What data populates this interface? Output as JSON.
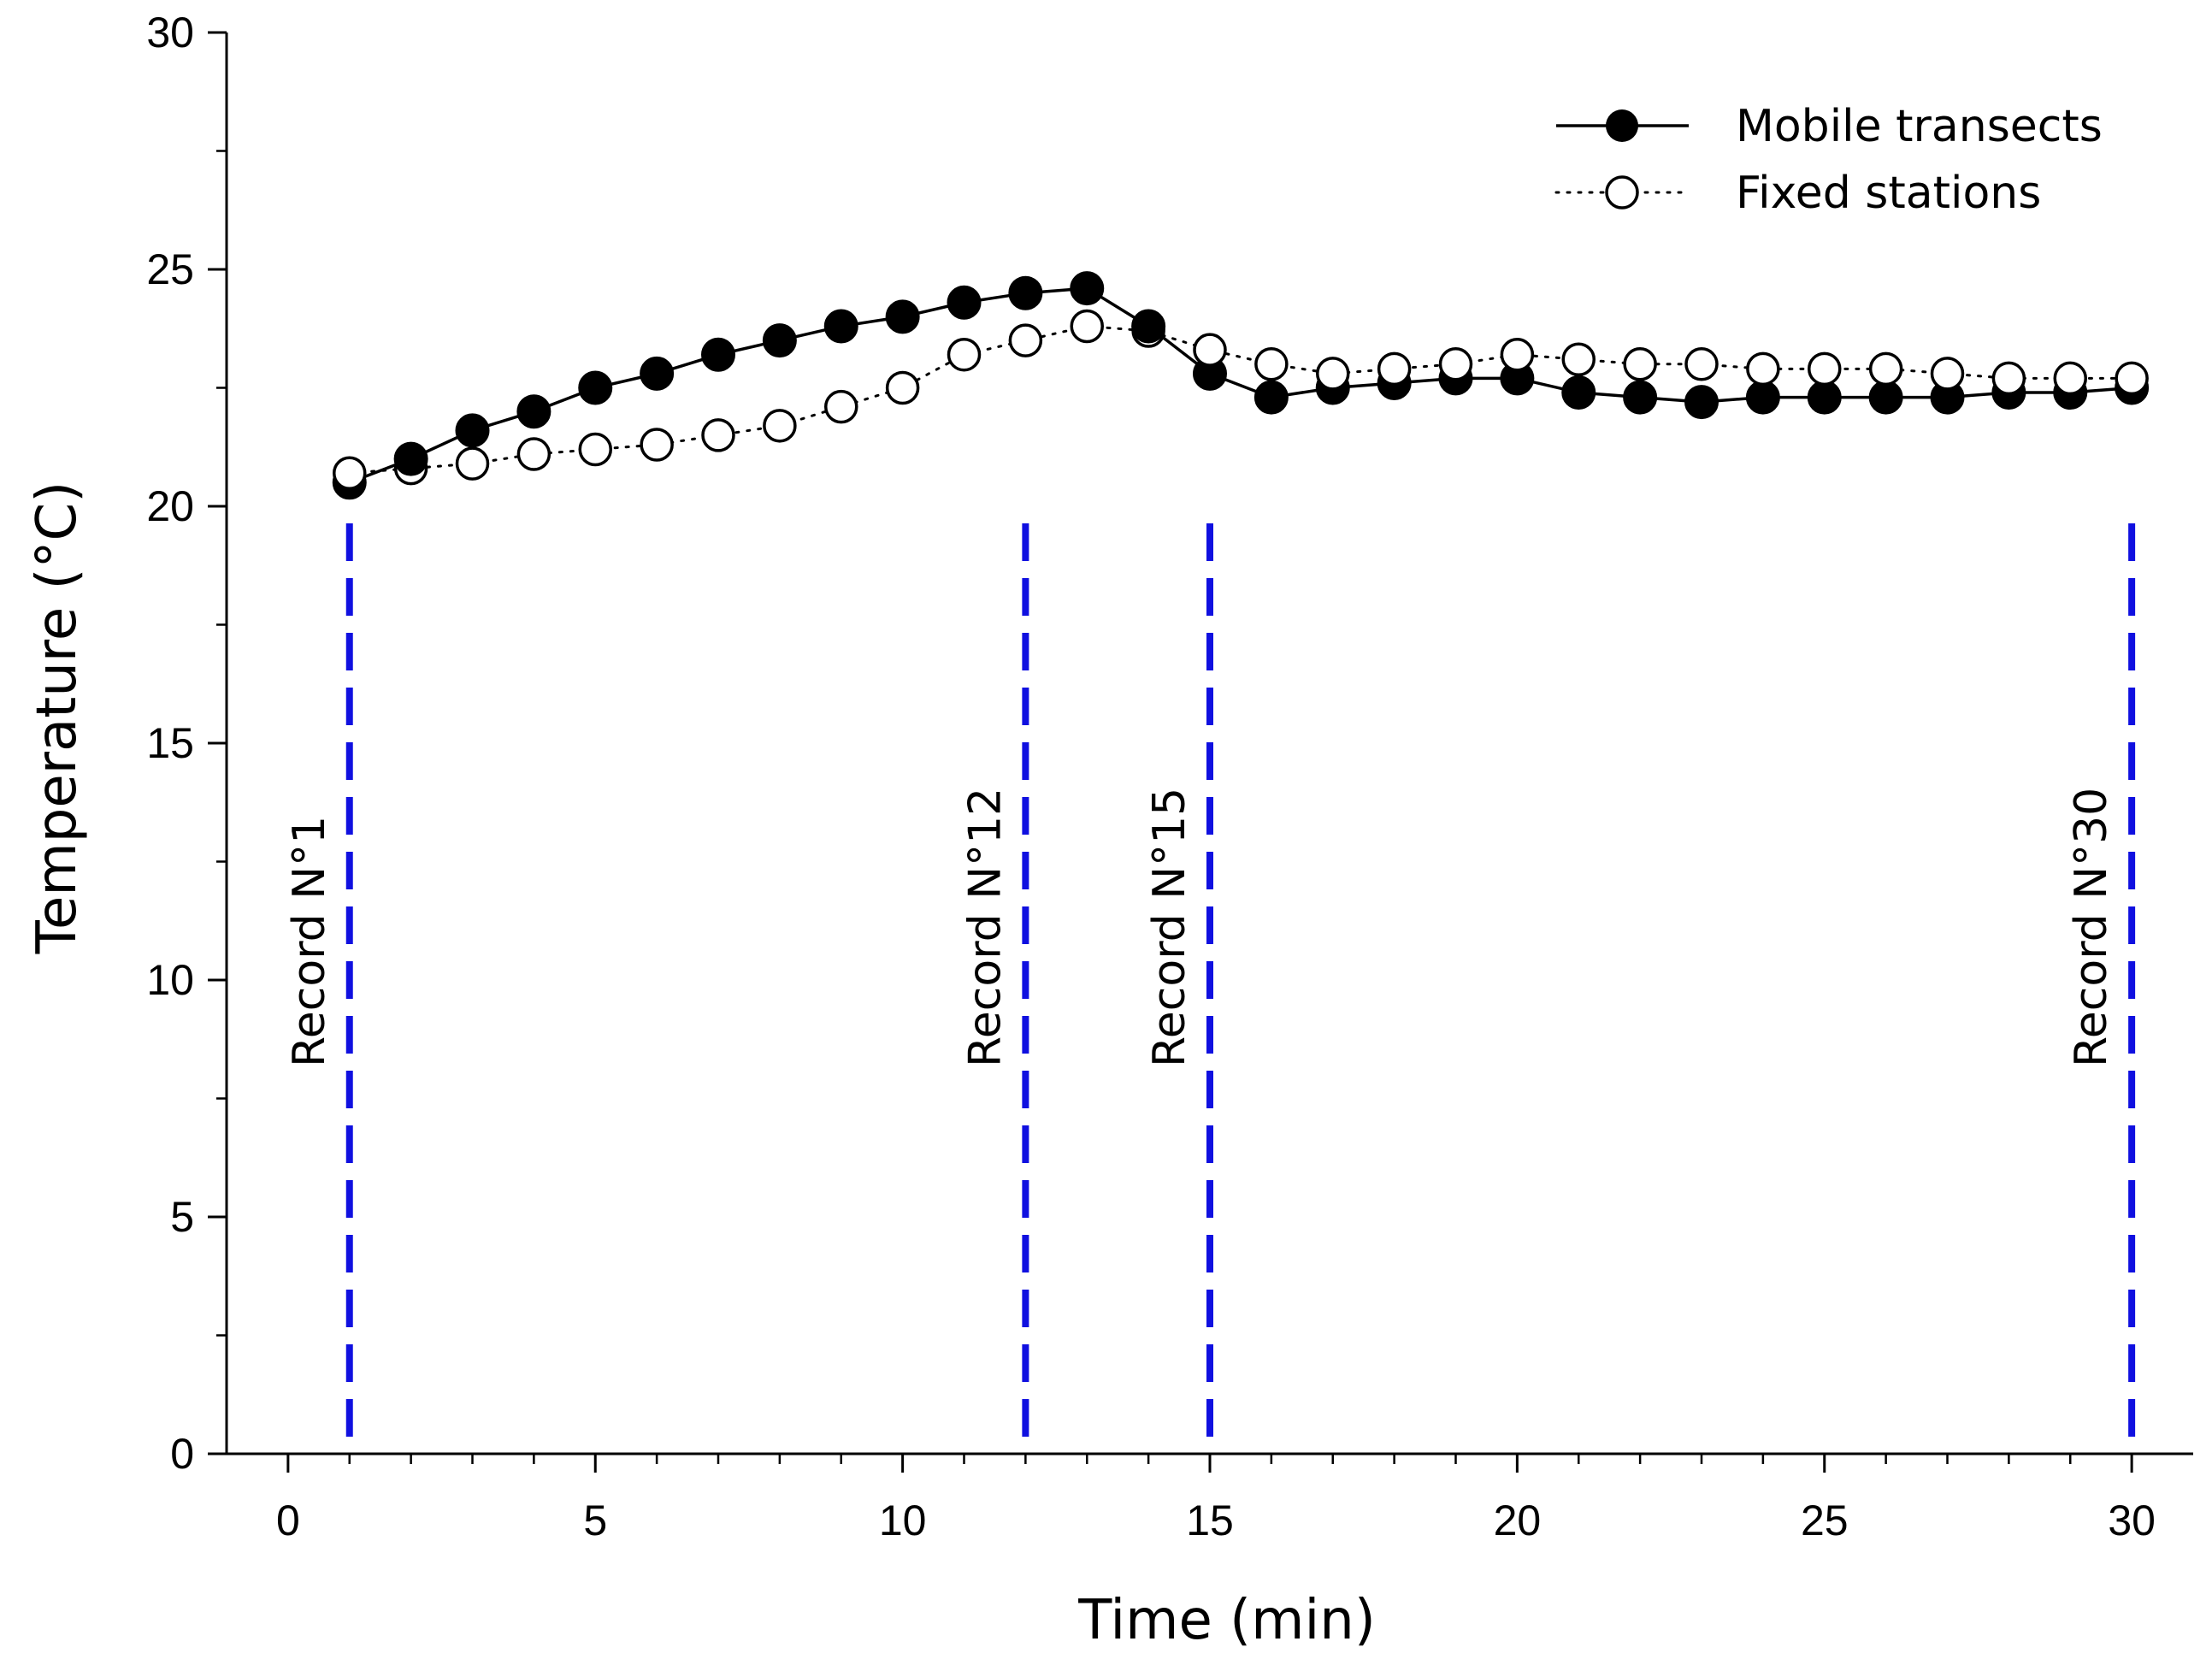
{
  "chart_data": {
    "type": "line",
    "title": "",
    "xlabel": "Time (min)",
    "ylabel": "Temperature (°C)",
    "xlim": [
      -1,
      31
    ],
    "ylim": [
      0,
      30
    ],
    "xticks": [
      0,
      5,
      10,
      15,
      20,
      25,
      30
    ],
    "yticks": [
      0,
      5,
      10,
      15,
      20,
      25,
      30
    ],
    "grid": false,
    "legend_position": "top-right",
    "series": [
      {
        "name": "Mobile transects",
        "marker": "filled-circle",
        "line": "solid",
        "color": "#000000",
        "x": [
          1,
          2,
          3,
          4,
          5,
          6,
          7,
          8,
          9,
          10,
          11,
          12,
          13,
          14,
          15,
          16,
          17,
          18,
          19,
          20,
          21,
          22,
          23,
          24,
          25,
          26,
          27,
          28,
          29,
          30
        ],
        "values": [
          20.5,
          21.0,
          21.6,
          22.0,
          22.5,
          22.8,
          23.2,
          23.5,
          23.8,
          24.0,
          24.3,
          24.5,
          24.6,
          23.8,
          22.8,
          22.3,
          22.5,
          22.6,
          22.7,
          22.7,
          22.4,
          22.3,
          22.2,
          22.3,
          22.3,
          22.3,
          22.3,
          22.4,
          22.4,
          22.5
        ]
      },
      {
        "name": "Fixed stations",
        "marker": "open-circle",
        "line": "dotted",
        "color": "#000000",
        "x": [
          1,
          2,
          3,
          4,
          5,
          6,
          7,
          8,
          9,
          10,
          11,
          12,
          13,
          14,
          15,
          16,
          17,
          18,
          19,
          20,
          21,
          22,
          23,
          24,
          25,
          26,
          27,
          28,
          29,
          30
        ],
        "values": [
          20.7,
          20.8,
          20.9,
          21.1,
          21.2,
          21.3,
          21.5,
          21.7,
          22.1,
          22.5,
          23.2,
          23.5,
          23.8,
          23.7,
          23.3,
          23.0,
          22.8,
          22.9,
          23.0,
          23.2,
          23.1,
          23.0,
          23.0,
          22.9,
          22.9,
          22.9,
          22.8,
          22.7,
          22.7,
          22.7
        ]
      }
    ],
    "annotations": [
      {
        "label": "Record N°1",
        "x": 1,
        "color": "#1010e0",
        "style": "dashed"
      },
      {
        "label": "Record N°12",
        "x": 12,
        "color": "#1010e0",
        "style": "dashed"
      },
      {
        "label": "Record N°15",
        "x": 15,
        "color": "#1010e0",
        "style": "dashed"
      },
      {
        "label": "Record N°30",
        "x": 30,
        "color": "#1010e0",
        "style": "dashed"
      }
    ]
  }
}
